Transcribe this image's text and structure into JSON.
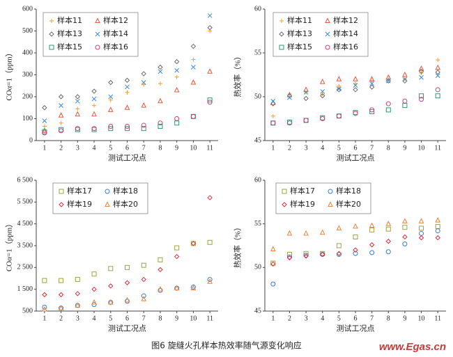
{
  "chart_data": [
    {
      "type": "scatter",
      "xlabel": "测试工况点",
      "ylabel": "COα=1（ppm）",
      "categories": [
        "1",
        "2",
        "3",
        "4",
        "5",
        "6",
        "7",
        "8",
        "9",
        "10",
        "11"
      ],
      "ylim": [
        0,
        600
      ],
      "yticks": [
        0,
        100,
        200,
        300,
        400,
        500,
        600
      ],
      "series": [
        {
          "name": "样本11",
          "color": "#f0a030",
          "marker": "plus",
          "values": [
            65,
            80,
            145,
            160,
            185,
            220,
            255,
            260,
            290,
            370,
            500
          ]
        },
        {
          "name": "样本12",
          "color": "#e05a3a",
          "marker": "triangle",
          "values": [
            45,
            115,
            120,
            120,
            140,
            150,
            160,
            180,
            230,
            265,
            315
          ]
        },
        {
          "name": "样本13",
          "color": "#6a6a6a",
          "marker": "diamond",
          "values": [
            150,
            200,
            200,
            225,
            265,
            275,
            305,
            335,
            360,
            430,
            515
          ]
        },
        {
          "name": "样本14",
          "color": "#3a8ad8",
          "marker": "x",
          "values": [
            90,
            160,
            180,
            190,
            200,
            245,
            265,
            315,
            320,
            335,
            570
          ]
        },
        {
          "name": "样本15",
          "color": "#2a9a6a",
          "marker": "square",
          "values": [
            40,
            50,
            50,
            50,
            55,
            55,
            55,
            65,
            80,
            110,
            185
          ]
        },
        {
          "name": "样本16",
          "color": "#d03a7a",
          "marker": "circle",
          "values": [
            35,
            45,
            55,
            55,
            65,
            65,
            70,
            80,
            100,
            110,
            175
          ]
        }
      ]
    },
    {
      "type": "scatter",
      "xlabel": "测试工况点",
      "ylabel": "热效率（%）",
      "categories": [
        "1",
        "2",
        "3",
        "4",
        "5",
        "6",
        "7",
        "8",
        "9",
        "10",
        "11"
      ],
      "ylim": [
        45,
        60
      ],
      "yticks": [
        45,
        50,
        55,
        60
      ],
      "series": [
        {
          "name": "样本11",
          "color": "#f0a030",
          "marker": "plus",
          "values": [
            47.8,
            50.3,
            50.5,
            50.3,
            51.2,
            51.5,
            51.8,
            52.0,
            52.0,
            52.7,
            54.2
          ]
        },
        {
          "name": "样本12",
          "color": "#e05a3a",
          "marker": "triangle",
          "values": [
            49.3,
            50.2,
            50.8,
            51.7,
            52.0,
            52.0,
            52.0,
            52.2,
            52.5,
            53.2,
            53.3
          ]
        },
        {
          "name": "样本13",
          "color": "#6a6a6a",
          "marker": "diamond",
          "values": [
            49.2,
            50.1,
            49.8,
            50.1,
            50.8,
            50.8,
            51.1,
            51.8,
            51.8,
            52.9,
            52.8
          ]
        },
        {
          "name": "样本14",
          "color": "#3a8ad8",
          "marker": "x",
          "values": [
            49.5,
            49.9,
            50.5,
            50.6,
            50.9,
            51.3,
            51.5,
            51.8,
            52.0,
            52.2,
            52.4
          ]
        },
        {
          "name": "样本15",
          "color": "#2a9a6a",
          "marker": "square",
          "values": [
            47.0,
            47.1,
            47.3,
            47.6,
            47.8,
            48.2,
            48.3,
            48.5,
            49.0,
            50.1,
            50.1
          ]
        },
        {
          "name": "样本16",
          "color": "#d03a7a",
          "marker": "circle",
          "values": [
            47.0,
            47.0,
            47.3,
            47.5,
            47.8,
            48.1,
            48.5,
            49.2,
            49.5,
            49.7,
            50.8
          ]
        }
      ]
    },
    {
      "type": "scatter",
      "xlabel": "测试工况点",
      "ylabel": "COα=1（ppm）",
      "categories": [
        "1",
        "2",
        "3",
        "4",
        "5",
        "6",
        "7",
        "8",
        "9",
        "10",
        "11"
      ],
      "ylim": [
        500,
        6500
      ],
      "yticks": [
        500,
        {
          "value": 1500,
          "label": "1 500"
        },
        {
          "value": 2500,
          "label": "2 500"
        },
        {
          "value": 3500,
          "label": "3 500"
        },
        {
          "value": 4500,
          "label": "4 500"
        },
        {
          "value": 5500,
          "label": "5 500"
        },
        {
          "value": 6500,
          "label": "6 500"
        }
      ],
      "series": [
        {
          "name": "样本17",
          "color": "#a0a040",
          "marker": "square",
          "values": [
            1900,
            1900,
            1950,
            2200,
            2450,
            2500,
            2600,
            2850,
            3400,
            3600,
            3650
          ]
        },
        {
          "name": "样本18",
          "color": "#3a7ac8",
          "marker": "circle",
          "values": [
            680,
            640,
            760,
            800,
            900,
            950,
            1200,
            1450,
            1550,
            1600,
            1950
          ]
        },
        {
          "name": "样本19",
          "color": "#d8303a",
          "marker": "diamond",
          "values": [
            1250,
            1250,
            1300,
            1500,
            1650,
            1800,
            1950,
            2400,
            3000,
            3600,
            5700
          ]
        },
        {
          "name": "样本20",
          "color": "#e8803a",
          "marker": "triangle",
          "values": [
            580,
            630,
            750,
            900,
            900,
            1000,
            1050,
            1500,
            1550,
            1550,
            1850
          ]
        }
      ]
    },
    {
      "type": "scatter",
      "xlabel": "测试工况点",
      "ylabel": "热效率（%）",
      "categories": [
        "1",
        "2",
        "3",
        "4",
        "5",
        "6",
        "7",
        "8",
        "9",
        "10",
        "11"
      ],
      "ylim": [
        45,
        60
      ],
      "yticks": [
        45,
        50,
        55,
        60
      ],
      "series": [
        {
          "name": "样本17",
          "color": "#a0a040",
          "marker": "square",
          "values": [
            50.5,
            51.5,
            51.6,
            51.6,
            52.5,
            53.5,
            54.3,
            54.4,
            54.6,
            54.5,
            54.7
          ]
        },
        {
          "name": "样本18",
          "color": "#3a7ac8",
          "marker": "circle",
          "values": [
            48.1,
            51.2,
            51.4,
            51.5,
            51.5,
            51.6,
            51.7,
            51.8,
            52.7,
            53.9,
            54.2
          ]
        },
        {
          "name": "样本19",
          "color": "#d8303a",
          "marker": "diamond",
          "values": [
            50.4,
            51.1,
            51.3,
            51.5,
            51.6,
            52.0,
            52.6,
            53.0,
            53.5,
            53.4,
            53.4
          ]
        },
        {
          "name": "样本20",
          "color": "#e8803a",
          "marker": "triangle",
          "values": [
            52.1,
            53.9,
            53.9,
            54.0,
            54.5,
            54.7,
            54.8,
            55.0,
            55.3,
            55.3,
            55.4
          ]
        }
      ]
    }
  ],
  "caption": "图6  旋缝火孔样本热效率随气源变化响应",
  "watermark": "www.Egas.cn"
}
